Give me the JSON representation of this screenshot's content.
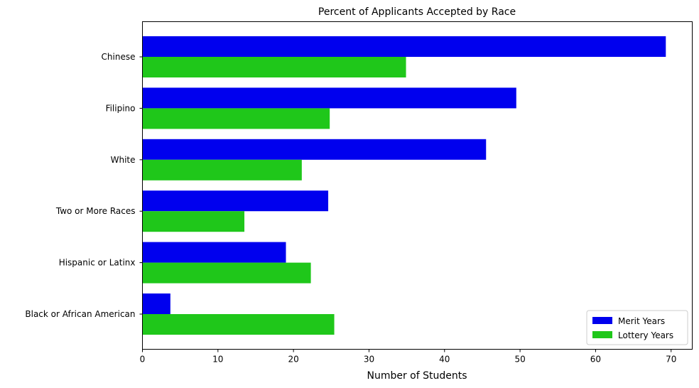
{
  "chart_data": {
    "type": "bar",
    "orientation": "horizontal",
    "title": "Percent of Applicants Accepted by Race",
    "xlabel": "Number of Students",
    "ylabel": "",
    "xlim": [
      0,
      72.8
    ],
    "xticks": [
      0,
      10,
      20,
      30,
      40,
      50,
      60,
      70
    ],
    "grid": false,
    "legend_position": "bottom-right",
    "categories": [
      "Chinese",
      "Filipino",
      "White",
      "Two or More Races",
      "Hispanic or Latinx",
      "Black or African American"
    ],
    "series": [
      {
        "name": "Merit Years",
        "color": "#0000ee",
        "values": [
          69.3,
          49.5,
          45.5,
          24.6,
          19.0,
          3.7
        ]
      },
      {
        "name": "Lottery Years",
        "color": "#1fc71a",
        "values": [
          34.9,
          24.8,
          21.1,
          13.5,
          22.3,
          25.4
        ]
      }
    ]
  }
}
